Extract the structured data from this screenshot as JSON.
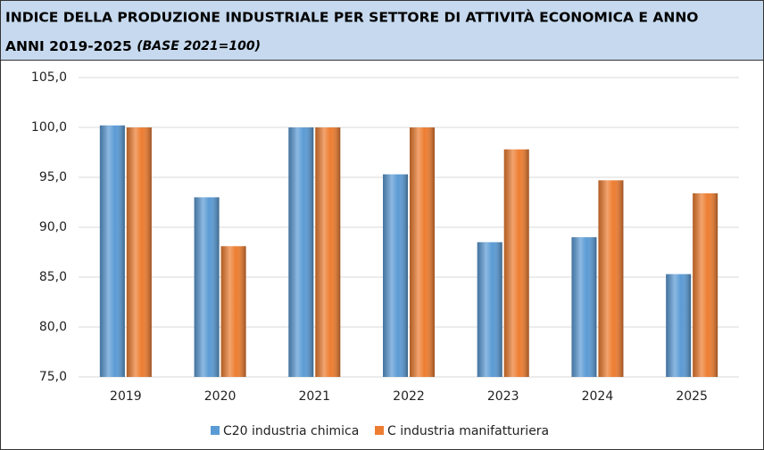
{
  "chart_data": {
    "type": "bar",
    "title": "INDICE DELLA PRODUZIONE INDUSTRIALE  PER SETTORE DI ATTIVITÀ ECONOMICA E ANNO",
    "subtitle": "ANNI 2019-2025",
    "note": "(BASE 2021=100)",
    "categories": [
      "2019",
      "2020",
      "2021",
      "2022",
      "2023",
      "2024",
      "2025"
    ],
    "series": [
      {
        "name": "C20 industria chimica",
        "color": "#5b9bd5",
        "values": [
          100.2,
          93.0,
          100.0,
          95.3,
          88.5,
          89.0,
          85.3
        ]
      },
      {
        "name": "C industria manifatturiera",
        "color": "#ed7d31",
        "values": [
          100.0,
          88.1,
          100.0,
          100.0,
          97.8,
          94.7,
          93.4
        ]
      }
    ],
    "ylim": [
      75,
      105
    ],
    "yticks": [
      {
        "value": 75,
        "label": "75,0"
      },
      {
        "value": 80,
        "label": "80,0"
      },
      {
        "value": 85,
        "label": "85,0"
      },
      {
        "value": 90,
        "label": "90,0"
      },
      {
        "value": 95,
        "label": "95,0"
      },
      {
        "value": 100,
        "label": "100,0"
      },
      {
        "value": 105,
        "label": "105,0"
      }
    ],
    "grid": true,
    "legend": "bottom"
  }
}
